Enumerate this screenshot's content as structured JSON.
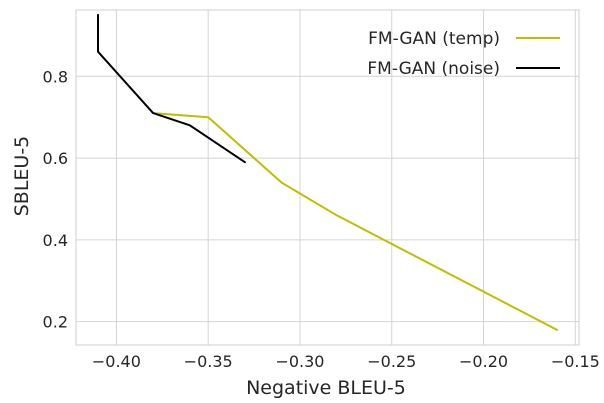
{
  "chart_data": {
    "type": "line",
    "xlabel": "Negative BLEU-5",
    "ylabel": "SBLEU-5",
    "xlim": [
      -0.422,
      -0.148
    ],
    "ylim": [
      0.143,
      0.962
    ],
    "xticks": [
      -0.4,
      -0.35,
      -0.3,
      -0.25,
      -0.2,
      -0.15
    ],
    "xtick_labels": [
      "−0.40",
      "−0.35",
      "−0.30",
      "−0.25",
      "−0.20",
      "−0.15"
    ],
    "yticks": [
      0.2,
      0.4,
      0.6,
      0.8
    ],
    "ytick_labels": [
      "0.2",
      "0.4",
      "0.6",
      "0.8"
    ],
    "grid": true,
    "legend_position": "top-right",
    "series": [
      {
        "name": "FM-GAN (temp)",
        "color": "#bfbf00",
        "x": [
          -0.38,
          -0.35,
          -0.31,
          -0.28,
          -0.16
        ],
        "y": [
          0.71,
          0.7,
          0.54,
          0.46,
          0.18
        ]
      },
      {
        "name": "FM-GAN (noise)",
        "color": "#000000",
        "x": [
          -0.41,
          -0.41,
          -0.38,
          -0.36,
          -0.33
        ],
        "y": [
          0.95,
          0.86,
          0.71,
          0.68,
          0.59
        ]
      }
    ]
  }
}
